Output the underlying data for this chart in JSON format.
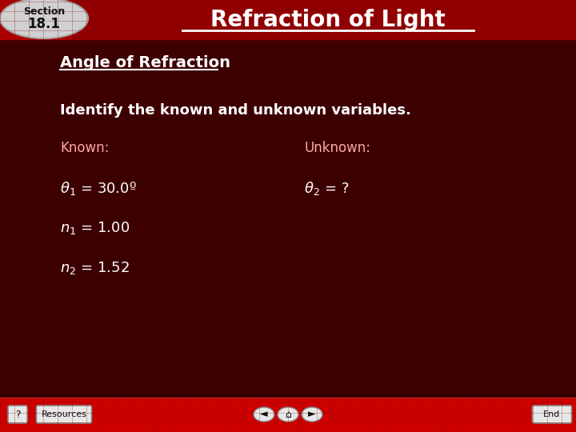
{
  "bg_color": "#3d0000",
  "header_color": "#aa0000",
  "header_grid_color": "#8b0000",
  "title_text": "Refraction of Light",
  "section_label": "Section",
  "section_number": "18.1",
  "subtitle": "Angle of Refraction",
  "body_line1": "Identify the known and unknown variables.",
  "known_label": "Known:",
  "unknown_label": "Unknown:",
  "footer_color": "#cc0000",
  "text_white": "#ffffff",
  "text_pink": "#ffaaaa",
  "text_dark": "#111111",
  "section_tab_color": "#d0d0d0",
  "section_tab_edge": "#aaaaaa",
  "btn_face": "#e8e8e8",
  "btn_edge": "#888888"
}
